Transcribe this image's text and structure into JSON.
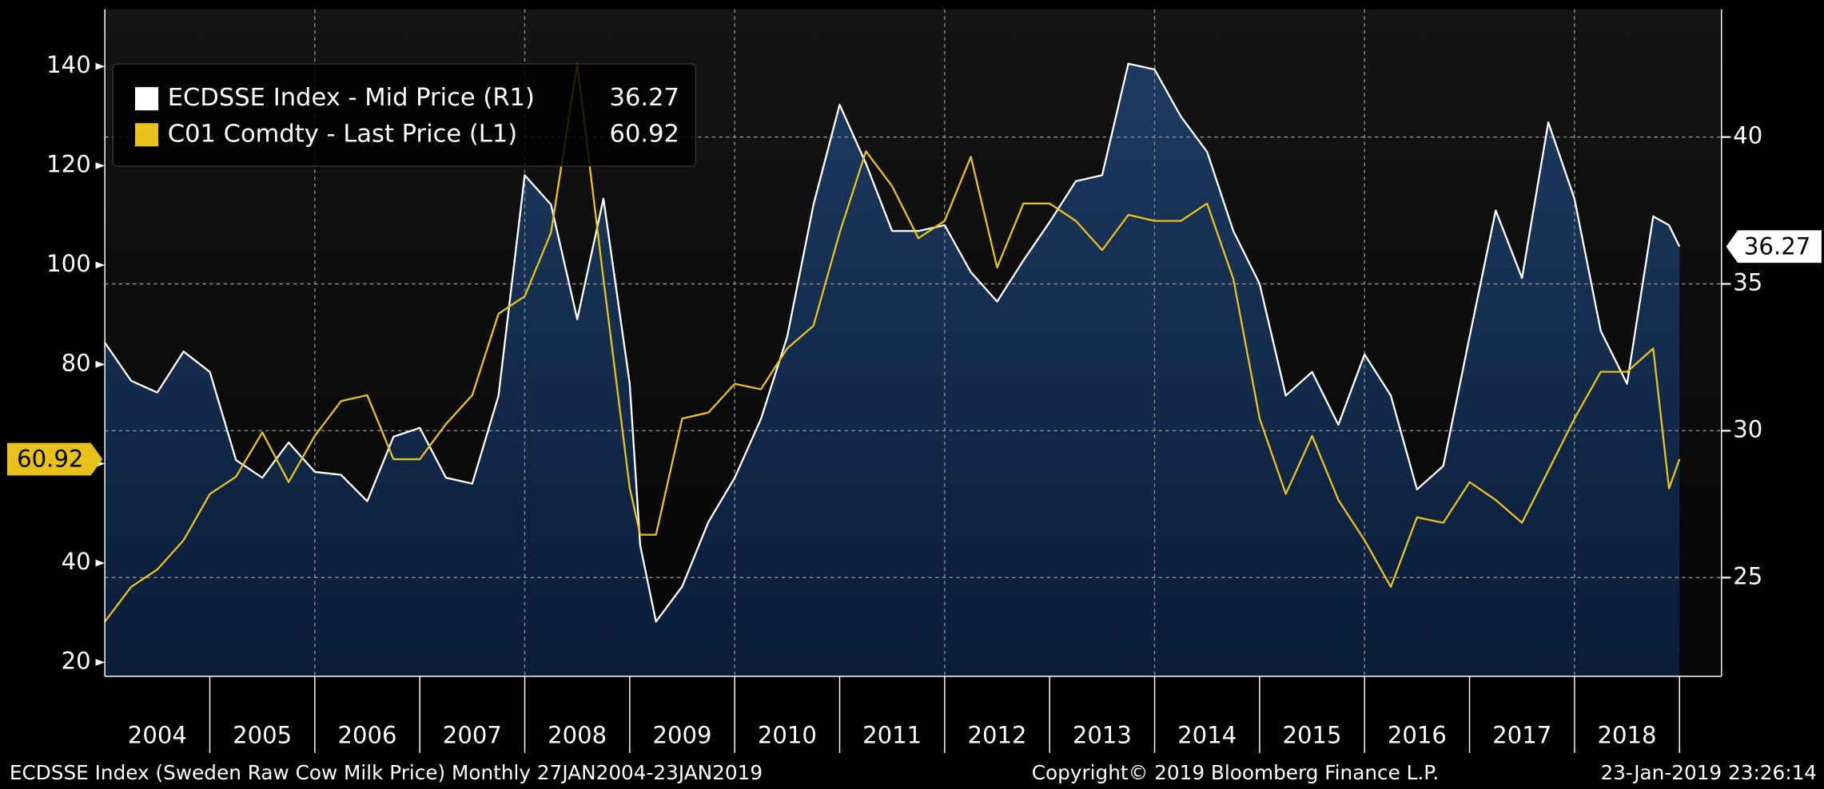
{
  "chart_data": {
    "type": "line",
    "x": [
      2004,
      2004.25,
      2004.5,
      2004.75,
      2005,
      2005.25,
      2005.5,
      2005.75,
      2006,
      2006.25,
      2006.5,
      2006.75,
      2007,
      2007.25,
      2007.5,
      2007.75,
      2008,
      2008.25,
      2008.5,
      2008.75,
      2009,
      2009.1,
      2009.25,
      2009.5,
      2009.75,
      2010,
      2010.25,
      2010.5,
      2010.75,
      2011,
      2011.25,
      2011.5,
      2011.75,
      2012,
      2012.25,
      2012.5,
      2012.75,
      2013,
      2013.25,
      2013.5,
      2013.75,
      2014,
      2014.25,
      2014.5,
      2014.75,
      2015,
      2015.25,
      2015.5,
      2015.75,
      2016,
      2016.25,
      2016.5,
      2016.75,
      2017,
      2017.25,
      2017.5,
      2017.75,
      2018,
      2018.25,
      2018.5,
      2018.75,
      2018.9,
      2019
    ],
    "series": [
      {
        "name": "ECDSSE Index - Mid Price (R1)",
        "color": "#ffffff",
        "fill": "#173256",
        "axis": "y2",
        "values": [
          33.0,
          31.7,
          31.3,
          32.7,
          32.0,
          29.0,
          28.4,
          29.6,
          28.6,
          28.5,
          27.6,
          29.8,
          30.1,
          28.4,
          28.2,
          31.2,
          38.7,
          37.7,
          33.8,
          37.9,
          31.6,
          26.1,
          23.5,
          24.7,
          26.9,
          28.4,
          30.4,
          33.2,
          37.7,
          41.1,
          39.1,
          36.8,
          36.8,
          37.0,
          35.4,
          34.4,
          35.8,
          37.1,
          38.5,
          38.7,
          42.5,
          42.3,
          40.7,
          39.5,
          36.8,
          35.0,
          31.2,
          32.0,
          30.2,
          32.6,
          31.2,
          28.0,
          28.8,
          33.2,
          37.5,
          35.2,
          40.5,
          37.9,
          33.4,
          31.6,
          37.3,
          37.0,
          36.27
        ]
      },
      {
        "name": "C01 Comdty - Last Price (L1)",
        "color": "#e8c21a",
        "axis": "y",
        "values": [
          28.2,
          35.2,
          38.7,
          44.6,
          53.9,
          57.4,
          66.3,
          56.3,
          65.6,
          72.6,
          73.8,
          60.9,
          60.9,
          68.0,
          73.8,
          90.2,
          93.7,
          106.5,
          140.5,
          97.2,
          55.1,
          45.7,
          45.7,
          69.1,
          70.3,
          76.1,
          75.0,
          83.2,
          87.8,
          106.5,
          122.9,
          115.9,
          105.4,
          108.9,
          121.8,
          99.5,
          112.4,
          112.4,
          108.9,
          103.0,
          110.1,
          108.9,
          108.9,
          112.4,
          97.2,
          69.1,
          53.9,
          65.6,
          52.7,
          44.6,
          35.2,
          49.2,
          48.1,
          56.3,
          52.7,
          48.1,
          58.6,
          69.1,
          78.5,
          78.5,
          83.2,
          55.0,
          60.92
        ]
      }
    ],
    "xlim": [
      2004,
      2019.4
    ],
    "xticks": [
      2004,
      2005,
      2006,
      2007,
      2008,
      2009,
      2010,
      2011,
      2012,
      2013,
      2014,
      2015,
      2016,
      2017,
      2018
    ],
    "xgrid": [
      2006,
      2008,
      2010,
      2012,
      2014,
      2016,
      2018
    ],
    "ylim": [
      17.2,
      151.5
    ],
    "yticks": [
      20,
      40,
      60,
      80,
      100,
      120,
      140
    ],
    "y2lim": [
      21.64,
      44.35
    ],
    "y2ticks": [
      25,
      30,
      35,
      40
    ],
    "grid": true,
    "legend": "upper left",
    "footer": {
      "left": "ECDSSE Index (Sweden Raw Cow Milk Price)  Monthly 27JAN2004-23JAN2019",
      "center": "Copyright© 2019 Bloomberg Finance L.P.",
      "right": "23-Jan-2019 23:26:14"
    }
  }
}
